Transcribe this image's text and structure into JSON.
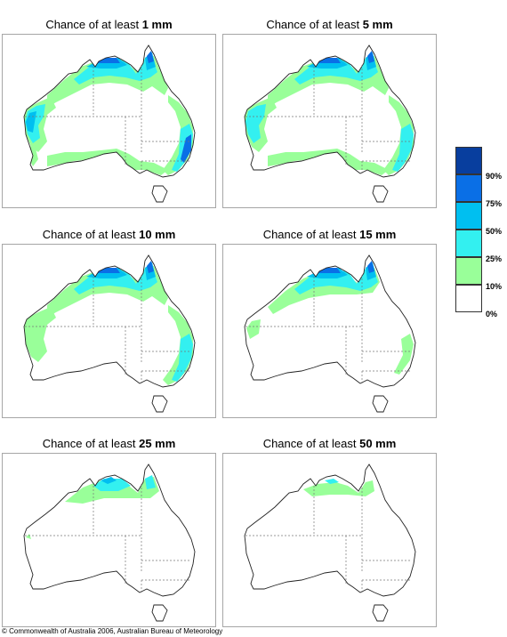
{
  "panels": [
    {
      "prefix": "Chance of at least ",
      "amount": "1 mm",
      "level": 0
    },
    {
      "prefix": "Chance of at least ",
      "amount": "5 mm",
      "level": 1
    },
    {
      "prefix": "Chance of at least ",
      "amount": "10 mm",
      "level": 2
    },
    {
      "prefix": "Chance of at least ",
      "amount": "15 mm",
      "level": 3
    },
    {
      "prefix": "Chance of at least ",
      "amount": "25 mm",
      "level": 4
    },
    {
      "prefix": "Chance of at least ",
      "amount": "50 mm",
      "level": 5
    }
  ],
  "legend": {
    "labels": [
      "90%",
      "75%",
      "50%",
      "25%",
      "10%",
      "0%"
    ],
    "colors": [
      "#083e9e",
      "#0a6fe6",
      "#00bff0",
      "#33f0f0",
      "#99ff99",
      "#ffffff"
    ]
  },
  "copyright": "© Commonwealth of Australia 2006, Australian Bureau of Meteorology"
}
